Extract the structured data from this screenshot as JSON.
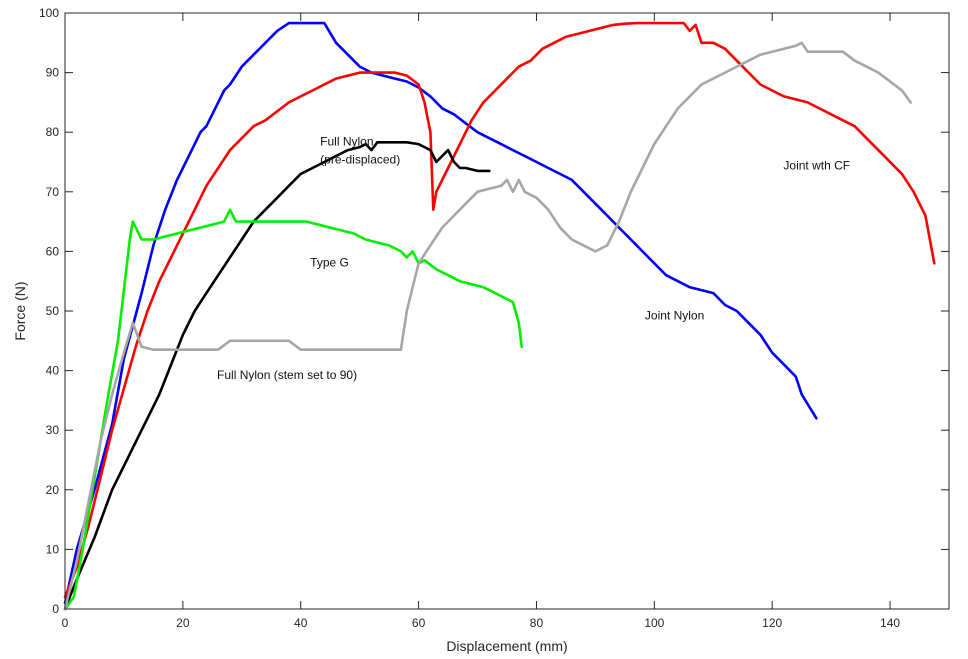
{
  "chart_data": {
    "type": "line",
    "xlabel": "Displacement (mm)",
    "ylabel": "Force (N)",
    "xlim": [
      0,
      150
    ],
    "ylim": [
      0,
      100
    ],
    "xticks": [
      0,
      20,
      40,
      60,
      80,
      100,
      120,
      140
    ],
    "yticks": [
      0,
      10,
      20,
      30,
      40,
      50,
      60,
      70,
      80,
      90,
      100
    ],
    "grid": false,
    "legend": "none",
    "series": [
      {
        "color": "#0000ff",
        "x": [
          0,
          2,
          5,
          8,
          10,
          13,
          15,
          17,
          19,
          20,
          22,
          23,
          24,
          25,
          26,
          27,
          28,
          30,
          32,
          34,
          36,
          38,
          40,
          44,
          46,
          48,
          50,
          52,
          54,
          56,
          58,
          60,
          62,
          64,
          66,
          68,
          70,
          72,
          74,
          76,
          78,
          80,
          82,
          84,
          86,
          88,
          90,
          92,
          94,
          96,
          98,
          100,
          102,
          104,
          106,
          108,
          110,
          112,
          114,
          116,
          118,
          120,
          122,
          124,
          125,
          127.5
        ],
        "y": [
          1,
          10,
          20,
          31,
          42,
          53,
          61,
          67,
          72,
          74,
          78,
          80,
          81,
          83,
          85,
          87,
          88,
          91,
          93,
          95,
          97,
          98.3,
          98.3,
          98.3,
          95,
          93,
          91,
          90,
          89.5,
          89,
          88.5,
          87.5,
          86,
          84,
          83,
          81.5,
          80,
          79,
          78,
          77,
          76,
          75,
          74,
          73,
          72,
          70,
          68,
          66,
          64,
          62,
          60,
          58,
          56,
          55,
          54,
          53.5,
          53,
          51,
          50,
          48,
          46,
          43,
          41,
          39,
          36,
          32
        ]
      },
      {
        "color": "#ff0000",
        "x": [
          0,
          2,
          4,
          6,
          8,
          10,
          12,
          14,
          16,
          18,
          20,
          22,
          24,
          26,
          28,
          30,
          32,
          34,
          36,
          38,
          40,
          42,
          44,
          46,
          48,
          50,
          52,
          54,
          56,
          58,
          60,
          61,
          62,
          62.5,
          63,
          65,
          67,
          69,
          71,
          73,
          75,
          77,
          79,
          81,
          83,
          85,
          87,
          89,
          91,
          93,
          95,
          97,
          99,
          101,
          103,
          105,
          106,
          107,
          108,
          110,
          112,
          114,
          116,
          118,
          120,
          122,
          124,
          126,
          128,
          130,
          132,
          134,
          136,
          138,
          140,
          142,
          144,
          146,
          147.5
        ],
        "y": [
          2,
          7,
          14,
          22,
          30,
          37,
          44,
          50,
          55,
          59,
          63,
          67,
          71,
          74,
          77,
          79,
          81,
          82,
          83.5,
          85,
          86,
          87,
          88,
          89,
          89.5,
          90,
          90,
          90,
          90,
          89.5,
          88,
          85,
          80,
          67,
          70,
          74,
          78,
          82,
          85,
          87,
          89,
          91,
          92,
          94,
          95,
          96,
          96.5,
          97,
          97.5,
          98,
          98.2,
          98.3,
          98.3,
          98.3,
          98.3,
          98.3,
          97,
          98,
          95,
          95,
          94,
          92,
          90,
          88,
          87,
          86,
          85.5,
          85,
          84,
          83,
          82,
          81,
          79,
          77,
          75,
          73,
          70,
          66,
          58
        ]
      },
      {
        "color": "#000000",
        "x": [
          0,
          2,
          5,
          8,
          10,
          12,
          14,
          16,
          18,
          20,
          22,
          24,
          26,
          28,
          30,
          32,
          34,
          36,
          38,
          40,
          42,
          44,
          46,
          48,
          50,
          51,
          52,
          53,
          54,
          56,
          58,
          60,
          62,
          63,
          64,
          65,
          66,
          67,
          68,
          70,
          72
        ],
        "y": [
          0,
          5,
          12,
          20,
          24,
          28,
          32,
          36,
          41,
          46,
          50,
          53,
          56,
          59,
          62,
          65,
          67,
          69,
          71,
          73,
          74,
          75,
          76,
          77,
          77.5,
          78,
          77,
          78.3,
          78.3,
          78.3,
          78.3,
          78,
          77,
          75,
          76,
          77,
          75,
          74,
          74,
          73.5,
          73.5
        ]
      },
      {
        "color": "#00ee00",
        "x": [
          0,
          1.5,
          3,
          5,
          7,
          9,
          11,
          11.5,
          13,
          15,
          17,
          19,
          21,
          23,
          25,
          27,
          28,
          29,
          31,
          33,
          35,
          37,
          39,
          41,
          43,
          45,
          47,
          49,
          51,
          53,
          55,
          57,
          58,
          59,
          60,
          61,
          63,
          65,
          67,
          69,
          71,
          73,
          75,
          76,
          77,
          77.5
        ],
        "y": [
          0,
          2,
          10,
          22,
          34,
          45,
          62,
          65,
          62,
          62,
          62.5,
          63,
          63.5,
          64,
          64.5,
          65,
          67,
          65,
          65,
          65,
          65,
          65,
          65,
          65,
          64.5,
          64,
          63.5,
          63,
          62,
          61.5,
          61,
          60,
          59,
          60,
          58,
          58.5,
          57,
          56,
          55,
          54.5,
          54,
          53,
          52,
          51.5,
          48,
          44
        ]
      },
      {
        "color": "#a6a6a6",
        "x": [
          0,
          2,
          4,
          6,
          8,
          10,
          11.5,
          13,
          15,
          20,
          26,
          28,
          30,
          35,
          38,
          40,
          45,
          50,
          55,
          57,
          58,
          60,
          62,
          64,
          66,
          68,
          70,
          72,
          74,
          75,
          76,
          77,
          78,
          80,
          82,
          84,
          86,
          88,
          90,
          92,
          94,
          96,
          98,
          100,
          102,
          104,
          106,
          108,
          110,
          112,
          114,
          116,
          118,
          120,
          122,
          124,
          125,
          126,
          128,
          130,
          132,
          134,
          136,
          138,
          140,
          142,
          143.5
        ],
        "y": [
          0,
          8,
          18,
          28,
          36,
          43,
          48,
          44,
          43.5,
          43.5,
          43.5,
          45,
          45,
          45,
          45,
          43.5,
          43.5,
          43.5,
          43.5,
          43.5,
          50,
          58,
          61,
          64,
          66,
          68,
          70,
          70.5,
          71,
          72,
          70,
          72,
          70,
          69,
          67,
          64,
          62,
          61,
          60,
          61,
          65,
          70,
          74,
          78,
          81,
          84,
          86,
          88,
          89,
          90,
          91,
          92,
          93,
          93.5,
          94,
          94.5,
          95,
          93.5,
          93.5,
          93.5,
          93.5,
          92,
          91,
          90,
          88.5,
          87,
          85
        ]
      }
    ],
    "annotations": [
      {
        "lines": [
          "Full Nylon",
          "(pre-displaced)"
        ],
        "x": 43.3,
        "y": 77.8
      },
      {
        "lines": [
          "Type G"
        ],
        "x": 41.6,
        "y": 57.5
      },
      {
        "lines": [
          "Full Nylon (stem set to 90)"
        ],
        "x": 25.8,
        "y": 38.6
      },
      {
        "lines": [
          "Joint Nylon"
        ],
        "x": 98.4,
        "y": 48.6
      },
      {
        "lines": [
          "Joint wth CF"
        ],
        "x": 121.9,
        "y": 73.7
      }
    ]
  }
}
